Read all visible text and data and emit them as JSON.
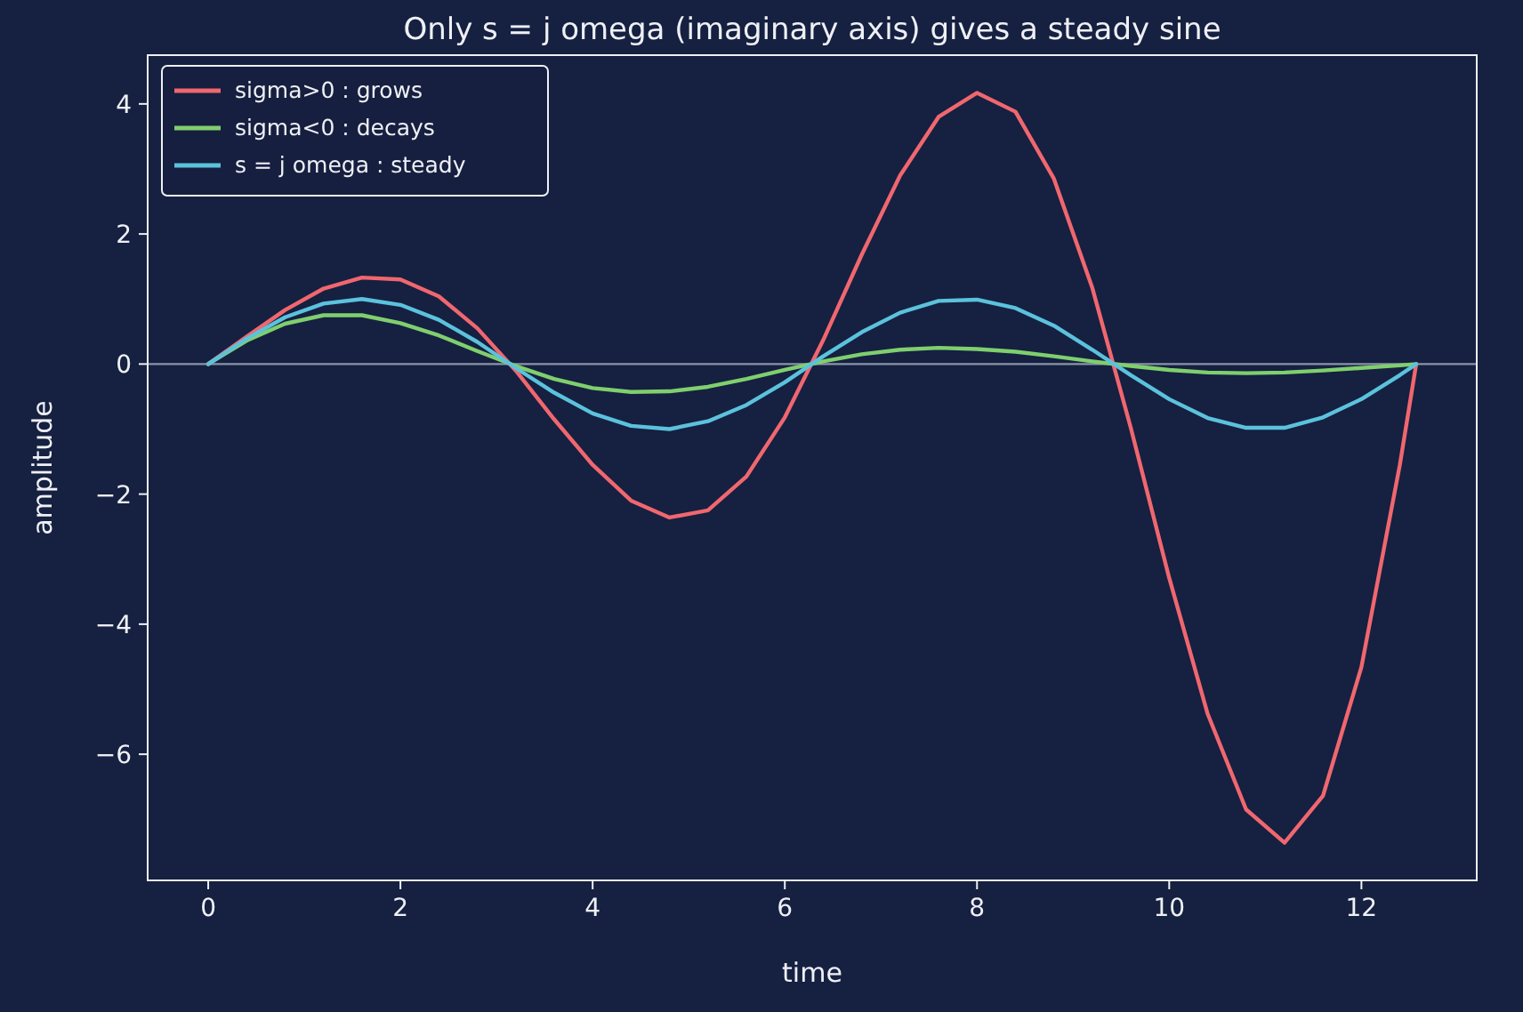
{
  "chart_data": {
    "type": "line",
    "title": "Only s = j omega (imaginary axis) gives a steady sine",
    "xlabel": "time",
    "ylabel": "amplitude",
    "x": [
      0,
      0.4,
      0.8,
      1.2,
      1.6,
      2.0,
      2.4,
      2.8,
      3.2,
      3.6,
      4.0,
      4.4,
      4.8,
      5.2,
      5.6,
      6.0,
      6.4,
      6.8,
      7.2,
      7.6,
      8.0,
      8.4,
      8.8,
      9.2,
      9.6,
      10.0,
      10.4,
      10.8,
      11.2,
      11.6,
      12.0,
      12.4,
      12.57
    ],
    "series": [
      {
        "name": "sigma>0 : grows",
        "color": "#f0676f",
        "values": [
          0,
          0.42,
          0.83,
          1.16,
          1.33,
          1.3,
          1.04,
          0.55,
          -0.1,
          -0.85,
          -1.55,
          -2.1,
          -2.36,
          -2.25,
          -1.73,
          -0.82,
          0.37,
          1.68,
          2.9,
          3.8,
          4.17,
          3.88,
          2.85,
          1.17,
          -0.98,
          -3.29,
          -5.38,
          -6.85,
          -7.36,
          -6.64,
          -4.66,
          -1.55,
          0
        ]
      },
      {
        "name": "sigma<0 : decays",
        "color": "#7fcf6e",
        "values": [
          0,
          0.36,
          0.62,
          0.75,
          0.75,
          0.63,
          0.44,
          0.2,
          -0.03,
          -0.23,
          -0.37,
          -0.43,
          -0.42,
          -0.35,
          -0.23,
          -0.09,
          0.04,
          0.15,
          0.22,
          0.25,
          0.23,
          0.19,
          0.12,
          0.04,
          -0.03,
          -0.09,
          -0.13,
          -0.14,
          -0.13,
          -0.1,
          -0.06,
          -0.02,
          0
        ]
      },
      {
        "name": "s = j omega : steady",
        "color": "#5bc2dc",
        "values": [
          0,
          0.39,
          0.72,
          0.93,
          1.0,
          0.91,
          0.68,
          0.34,
          -0.06,
          -0.44,
          -0.76,
          -0.95,
          -1.0,
          -0.88,
          -0.63,
          -0.28,
          0.12,
          0.49,
          0.79,
          0.97,
          0.99,
          0.86,
          0.59,
          0.22,
          -0.17,
          -0.54,
          -0.83,
          -0.98,
          -0.98,
          -0.82,
          -0.54,
          -0.17,
          0
        ]
      }
    ],
    "xlim": [
      -0.63,
      13.2
    ],
    "ylim": [
      -7.94,
      4.75
    ],
    "xticks": [
      0,
      2,
      4,
      6,
      8,
      10,
      12
    ],
    "yticks": [
      {
        "value": -6,
        "label": "−6"
      },
      {
        "value": -4,
        "label": "−4"
      },
      {
        "value": -2,
        "label": "−2"
      },
      0,
      2,
      4
    ],
    "ref_lines": [
      {
        "axis": "y",
        "value": 0,
        "color": "#8a93a8"
      }
    ],
    "legend": "top left",
    "grid": false,
    "marker": "none",
    "line_style": "solid"
  }
}
